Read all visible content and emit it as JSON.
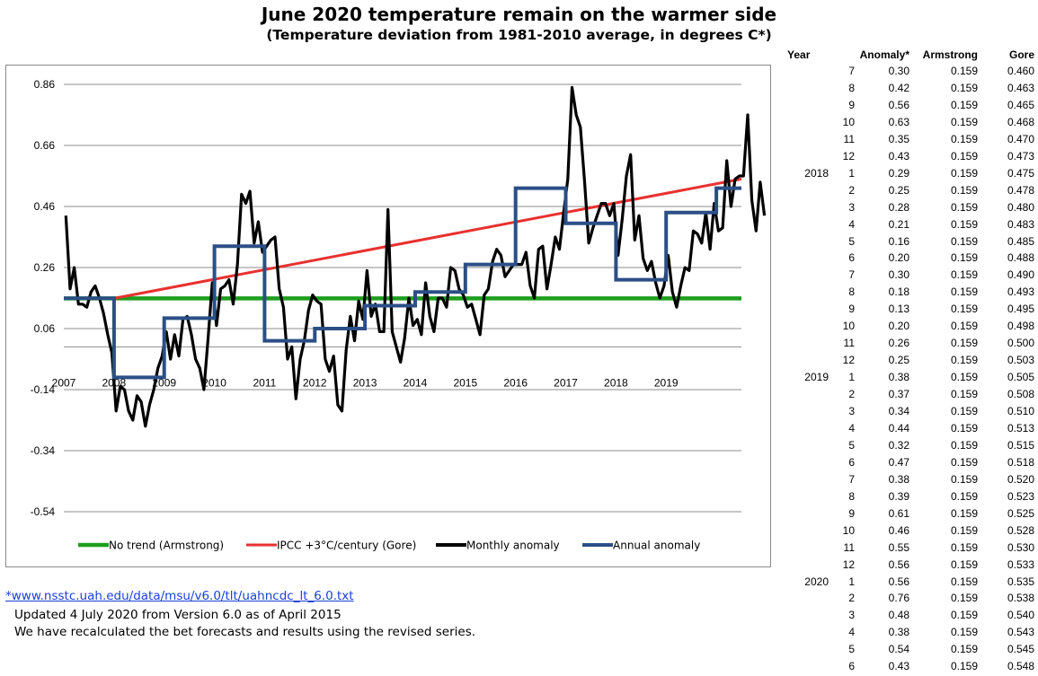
{
  "title": "June 2020 temperature remain on the warmer side",
  "subtitle": "(Temperature deviation from 1981-2010 average, in degrees C*)",
  "footnotes": {
    "link": "*www.nsstc.uah.edu/data/msu/v6.0/tlt/uahncdc_lt_6.0.txt",
    "line1": "Updated 4 July 2020 from Version 6.0 as of April 2015",
    "line2": "We have recalculated the bet forecasts and results using the revised series."
  },
  "table": {
    "headers": {
      "year": "Year",
      "anomaly": "Anomaly*",
      "armstrong": "Armstrong",
      "gore": "Gore"
    },
    "rows": [
      {
        "year": "",
        "month": "7",
        "anomaly": "0.30",
        "armstrong": "0.159",
        "gore": "0.460"
      },
      {
        "year": "",
        "month": "8",
        "anomaly": "0.42",
        "armstrong": "0.159",
        "gore": "0.463"
      },
      {
        "year": "",
        "month": "9",
        "anomaly": "0.56",
        "armstrong": "0.159",
        "gore": "0.465"
      },
      {
        "year": "",
        "month": "10",
        "anomaly": "0.63",
        "armstrong": "0.159",
        "gore": "0.468"
      },
      {
        "year": "",
        "month": "11",
        "anomaly": "0.35",
        "armstrong": "0.159",
        "gore": "0.470"
      },
      {
        "year": "",
        "month": "12",
        "anomaly": "0.43",
        "armstrong": "0.159",
        "gore": "0.473"
      },
      {
        "year": "2018",
        "month": "1",
        "anomaly": "0.29",
        "armstrong": "0.159",
        "gore": "0.475"
      },
      {
        "year": "",
        "month": "2",
        "anomaly": "0.25",
        "armstrong": "0.159",
        "gore": "0.478"
      },
      {
        "year": "",
        "month": "3",
        "anomaly": "0.28",
        "armstrong": "0.159",
        "gore": "0.480"
      },
      {
        "year": "",
        "month": "4",
        "anomaly": "0.21",
        "armstrong": "0.159",
        "gore": "0.483"
      },
      {
        "year": "",
        "month": "5",
        "anomaly": "0.16",
        "armstrong": "0.159",
        "gore": "0.485"
      },
      {
        "year": "",
        "month": "6",
        "anomaly": "0.20",
        "armstrong": "0.159",
        "gore": "0.488"
      },
      {
        "year": "",
        "month": "7",
        "anomaly": "0.30",
        "armstrong": "0.159",
        "gore": "0.490"
      },
      {
        "year": "",
        "month": "8",
        "anomaly": "0.18",
        "armstrong": "0.159",
        "gore": "0.493"
      },
      {
        "year": "",
        "month": "9",
        "anomaly": "0.13",
        "armstrong": "0.159",
        "gore": "0.495"
      },
      {
        "year": "",
        "month": "10",
        "anomaly": "0.20",
        "armstrong": "0.159",
        "gore": "0.498"
      },
      {
        "year": "",
        "month": "11",
        "anomaly": "0.26",
        "armstrong": "0.159",
        "gore": "0.500"
      },
      {
        "year": "",
        "month": "12",
        "anomaly": "0.25",
        "armstrong": "0.159",
        "gore": "0.503"
      },
      {
        "year": "2019",
        "month": "1",
        "anomaly": "0.38",
        "armstrong": "0.159",
        "gore": "0.505"
      },
      {
        "year": "",
        "month": "2",
        "anomaly": "0.37",
        "armstrong": "0.159",
        "gore": "0.508"
      },
      {
        "year": "",
        "month": "3",
        "anomaly": "0.34",
        "armstrong": "0.159",
        "gore": "0.510"
      },
      {
        "year": "",
        "month": "4",
        "anomaly": "0.44",
        "armstrong": "0.159",
        "gore": "0.513"
      },
      {
        "year": "",
        "month": "5",
        "anomaly": "0.32",
        "armstrong": "0.159",
        "gore": "0.515"
      },
      {
        "year": "",
        "month": "6",
        "anomaly": "0.47",
        "armstrong": "0.159",
        "gore": "0.518"
      },
      {
        "year": "",
        "month": "7",
        "anomaly": "0.38",
        "armstrong": "0.159",
        "gore": "0.520"
      },
      {
        "year": "",
        "month": "8",
        "anomaly": "0.39",
        "armstrong": "0.159",
        "gore": "0.523"
      },
      {
        "year": "",
        "month": "9",
        "anomaly": "0.61",
        "armstrong": "0.159",
        "gore": "0.525"
      },
      {
        "year": "",
        "month": "10",
        "anomaly": "0.46",
        "armstrong": "0.159",
        "gore": "0.528"
      },
      {
        "year": "",
        "month": "11",
        "anomaly": "0.55",
        "armstrong": "0.159",
        "gore": "0.530"
      },
      {
        "year": "",
        "month": "12",
        "anomaly": "0.56",
        "armstrong": "0.159",
        "gore": "0.533"
      },
      {
        "year": "2020",
        "month": "1",
        "anomaly": "0.56",
        "armstrong": "0.159",
        "gore": "0.535"
      },
      {
        "year": "",
        "month": "2",
        "anomaly": "0.76",
        "armstrong": "0.159",
        "gore": "0.538"
      },
      {
        "year": "",
        "month": "3",
        "anomaly": "0.48",
        "armstrong": "0.159",
        "gore": "0.540"
      },
      {
        "year": "",
        "month": "4",
        "anomaly": "0.38",
        "armstrong": "0.159",
        "gore": "0.543"
      },
      {
        "year": "",
        "month": "5",
        "anomaly": "0.54",
        "armstrong": "0.159",
        "gore": "0.545"
      },
      {
        "year": "",
        "month": "6",
        "anomaly": "0.43",
        "armstrong": "0.159",
        "gore": "0.548"
      }
    ]
  },
  "chart_data": {
    "type": "line",
    "title": "June 2020 temperature remain on the warmer side",
    "subtitle": "(Temperature deviation from 1981-2010 average, in degrees C*)",
    "ylim": [
      -0.54,
      0.86
    ],
    "yticks": [
      0.86,
      0.66,
      0.46,
      0.26,
      0.06,
      -0.14,
      -0.34,
      -0.54
    ],
    "ytick_labels": [
      "0.86",
      "0.66",
      "0.46",
      "0.26",
      "0.06",
      "-0.14",
      "-0.34",
      "-0.54"
    ],
    "xlim": [
      2007,
      2020.5
    ],
    "xticks": [
      2007,
      2008,
      2009,
      2010,
      2011,
      2012,
      2013,
      2014,
      2015,
      2016,
      2017,
      2018,
      2019
    ],
    "xtick_labels": [
      "2007",
      "2008",
      "2009",
      "2010",
      "2011",
      "2012",
      "2013",
      "2014",
      "2015",
      "2016",
      "2017",
      "2018",
      "2019"
    ],
    "grid": true,
    "legend_position": "bottom",
    "colors": {
      "armstrong": "#1e9e1e",
      "gore": "#e8312f",
      "monthly": "#000000",
      "annual": "#2b4f86"
    },
    "series": [
      {
        "name": "No trend (Armstrong)",
        "kind": "line",
        "x": [
          2007.0,
          2020.5
        ],
        "values": [
          0.159,
          0.159
        ]
      },
      {
        "name": "IPCC +3°C/century (Gore)",
        "kind": "line",
        "x": [
          2008.0,
          2020.5
        ],
        "values": [
          0.159,
          0.55
        ]
      },
      {
        "name": "Monthly anomaly",
        "kind": "monthly",
        "start": 2007.0,
        "values": [
          0.43,
          0.19,
          0.26,
          0.14,
          0.14,
          0.13,
          0.18,
          0.2,
          0.16,
          0.11,
          0.04,
          -0.02,
          -0.21,
          -0.13,
          -0.14,
          -0.21,
          -0.24,
          -0.16,
          -0.18,
          -0.26,
          -0.19,
          -0.14,
          -0.07,
          -0.03,
          0.05,
          -0.04,
          0.04,
          -0.03,
          0.09,
          0.1,
          0.04,
          -0.04,
          -0.07,
          -0.14,
          0.03,
          0.21,
          0.07,
          0.19,
          0.2,
          0.22,
          0.14,
          0.27,
          0.5,
          0.47,
          0.51,
          0.34,
          0.41,
          0.31,
          0.33,
          0.35,
          0.36,
          0.19,
          0.13,
          -0.04,
          0.0,
          -0.17,
          -0.04,
          0.02,
          0.12,
          0.17,
          0.15,
          0.14,
          -0.04,
          -0.08,
          -0.03,
          -0.19,
          -0.21,
          -0.01,
          0.1,
          0.02,
          0.15,
          0.09,
          0.25,
          0.1,
          0.14,
          0.05,
          0.05,
          0.45,
          0.05,
          0.0,
          -0.05,
          0.03,
          0.16,
          0.07,
          0.09,
          0.04,
          0.21,
          0.1,
          0.05,
          0.16,
          0.16,
          0.13,
          0.26,
          0.25,
          0.19,
          0.17,
          0.13,
          0.14,
          0.09,
          0.04,
          0.17,
          0.19,
          0.28,
          0.32,
          0.3,
          0.23,
          0.25,
          0.27,
          0.27,
          0.27,
          0.31,
          0.2,
          0.16,
          0.32,
          0.33,
          0.19,
          0.27,
          0.36,
          0.32,
          0.44,
          0.55,
          0.85,
          0.76,
          0.72,
          0.54,
          0.34,
          0.39,
          0.43,
          0.47,
          0.47,
          0.43,
          0.47,
          0.3,
          0.42,
          0.56,
          0.63,
          0.35,
          0.43,
          0.29,
          0.25,
          0.28,
          0.21,
          0.16,
          0.2,
          0.3,
          0.18,
          0.13,
          0.2,
          0.26,
          0.25,
          0.38,
          0.37,
          0.34,
          0.44,
          0.32,
          0.47,
          0.38,
          0.39,
          0.61,
          0.46,
          0.55,
          0.56,
          0.56,
          0.76,
          0.48,
          0.38,
          0.54,
          0.43
        ]
      },
      {
        "name": "Annual anomaly",
        "kind": "step",
        "steps": [
          {
            "x0": 2007,
            "x1": 2008,
            "value": 0.159
          },
          {
            "x0": 2008,
            "x1": 2009,
            "value": -0.1
          },
          {
            "x0": 2009,
            "x1": 2010,
            "value": 0.094
          },
          {
            "x0": 2010,
            "x1": 2011,
            "value": 0.33
          },
          {
            "x0": 2011,
            "x1": 2012,
            "value": 0.02
          },
          {
            "x0": 2012,
            "x1": 2013,
            "value": 0.06
          },
          {
            "x0": 2013,
            "x1": 2014,
            "value": 0.135
          },
          {
            "x0": 2014,
            "x1": 2015,
            "value": 0.18
          },
          {
            "x0": 2015,
            "x1": 2016,
            "value": 0.27
          },
          {
            "x0": 2016,
            "x1": 2017,
            "value": 0.52
          },
          {
            "x0": 2017,
            "x1": 2018,
            "value": 0.405
          },
          {
            "x0": 2018,
            "x1": 2019,
            "value": 0.22
          },
          {
            "x0": 2019,
            "x1": 2020,
            "value": 0.44
          },
          {
            "x0": 2020,
            "x1": 2020.5,
            "value": 0.52
          }
        ]
      }
    ]
  }
}
